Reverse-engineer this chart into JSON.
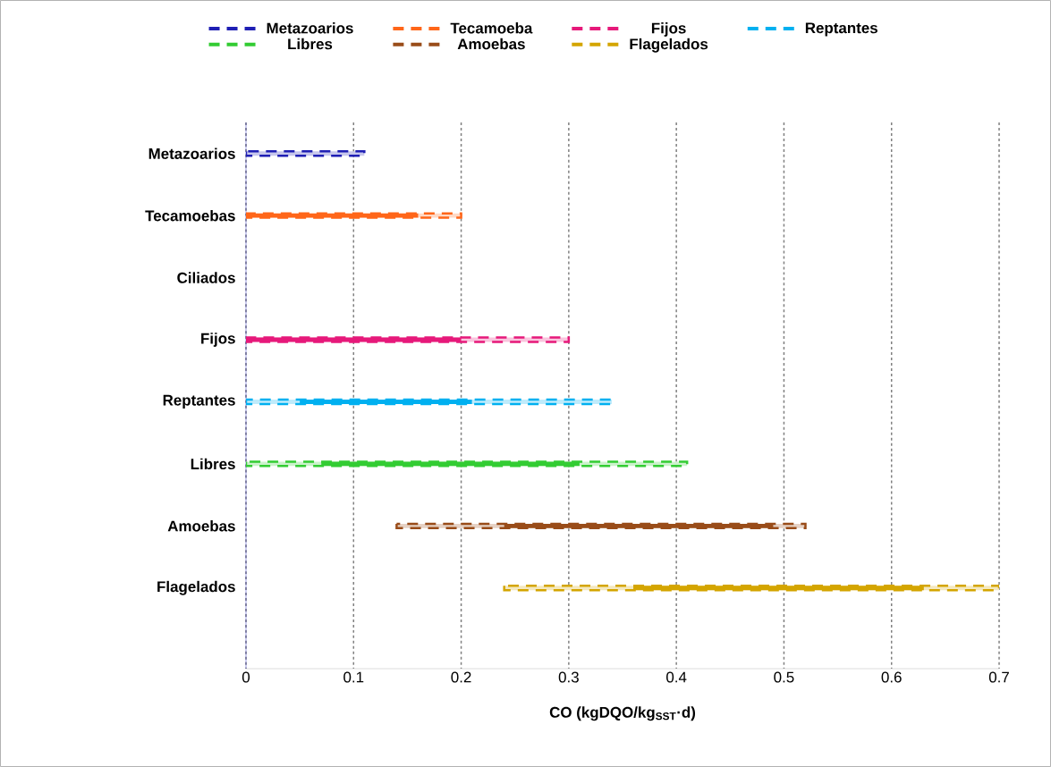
{
  "chart_data": {
    "type": "bar",
    "orientation": "horizontal",
    "xlabel": "CO (kgDQO/kg$_{SST}$·d)",
    "categories": [
      "Metazoarios",
      "Tecamoebas",
      "Ciliados",
      "Fijos",
      "Reptantes",
      "Libres",
      "Amoebas",
      "Flagelados"
    ],
    "series": [
      {
        "name": "Metazoarios",
        "color": "#1f1fb4",
        "line_style": "dashed",
        "base": [
          0,
          null,
          null,
          null,
          null,
          null,
          null,
          null
        ],
        "values": [
          0.11,
          null,
          null,
          null,
          null,
          null,
          null,
          null
        ]
      },
      {
        "name": "Tecamoeba",
        "color": "#ff6619",
        "line_style": "dashed",
        "base": [
          null,
          0,
          null,
          null,
          null,
          null,
          null,
          null
        ],
        "values": [
          null,
          0.2,
          null,
          null,
          null,
          null,
          null,
          null
        ]
      },
      {
        "name": "Fijos",
        "color": "#e6197a",
        "line_style": "dashed",
        "base": [
          null,
          null,
          null,
          0,
          null,
          null,
          null,
          null
        ],
        "values": [
          null,
          null,
          null,
          0.3,
          null,
          null,
          null,
          null
        ]
      },
      {
        "name": "Reptantes",
        "color": "#00b0f0",
        "line_style": "dashed",
        "base": [
          null,
          null,
          null,
          null,
          0,
          null,
          null,
          null
        ],
        "values": [
          null,
          null,
          null,
          null,
          0.34,
          null,
          null,
          null
        ]
      },
      {
        "name": "Libres",
        "color": "#33cc33",
        "line_style": "dashed",
        "base": [
          null,
          null,
          null,
          null,
          null,
          0,
          null,
          null
        ],
        "values": [
          null,
          null,
          null,
          null,
          null,
          0.41,
          null,
          null
        ]
      },
      {
        "name": "Amoebas",
        "color": "#994c19",
        "line_style": "dashed",
        "base": [
          null,
          null,
          null,
          null,
          null,
          null,
          0.14,
          null
        ],
        "values": [
          null,
          null,
          null,
          null,
          null,
          null,
          0.38,
          null
        ]
      },
      {
        "name": "Flagelados",
        "color": "#d4a500",
        "line_style": "dashed",
        "base": [
          null,
          null,
          null,
          null,
          null,
          null,
          null,
          0.24
        ],
        "values": [
          null,
          null,
          null,
          null,
          null,
          null,
          null,
          0.46
        ]
      },
      {
        "line_style": "solid",
        "colors": [
          "#1f1fb4",
          "#ff6619",
          "#33cc33",
          "#e6197a",
          "#00b0f0",
          "#33cc33",
          "#994c19",
          "#d4a500"
        ],
        "base": [
          null,
          0,
          null,
          0,
          0.05,
          0.07,
          0.24,
          0.36
        ],
        "values": [
          null,
          0.16,
          null,
          0.2,
          0.16,
          0.24,
          0.25,
          0.27
        ]
      }
    ],
    "xlim": [
      0,
      0.7
    ],
    "xticks": [
      0,
      0.1,
      0.2,
      0.3,
      0.4,
      0.5,
      0.6,
      0.7
    ],
    "grid": "x",
    "legend": "top"
  }
}
